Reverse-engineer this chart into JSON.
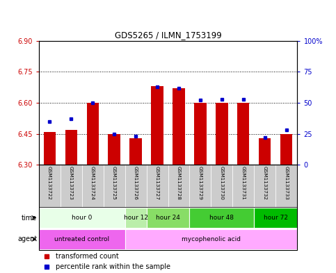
{
  "title": "GDS5265 / ILMN_1753199",
  "samples": [
    "GSM1133722",
    "GSM1133723",
    "GSM1133724",
    "GSM1133725",
    "GSM1133726",
    "GSM1133727",
    "GSM1133728",
    "GSM1133729",
    "GSM1133730",
    "GSM1133731",
    "GSM1133732",
    "GSM1133733"
  ],
  "red_values": [
    6.46,
    6.47,
    6.6,
    6.45,
    6.43,
    6.68,
    6.67,
    6.6,
    6.6,
    6.6,
    6.43,
    6.45
  ],
  "blue_values": [
    35,
    37,
    50,
    25,
    23,
    63,
    62,
    52,
    53,
    53,
    22,
    28
  ],
  "ylim_left": [
    6.3,
    6.9
  ],
  "ylim_right": [
    0,
    100
  ],
  "left_ticks": [
    6.3,
    6.45,
    6.6,
    6.75,
    6.9
  ],
  "right_ticks": [
    0,
    25,
    50,
    75,
    100
  ],
  "dotted_lines": [
    6.45,
    6.6,
    6.75
  ],
  "bar_color": "#cc0000",
  "bar_bottom": 6.3,
  "blue_color": "#0000cc",
  "time_groups": [
    {
      "label": "hour 0",
      "start": 0,
      "end": 3,
      "color": "#e8ffe8"
    },
    {
      "label": "hour 12",
      "start": 4,
      "end": 4,
      "color": "#bbeeaa"
    },
    {
      "label": "hour 24",
      "start": 5,
      "end": 6,
      "color": "#88dd66"
    },
    {
      "label": "hour 48",
      "start": 7,
      "end": 9,
      "color": "#44cc33"
    },
    {
      "label": "hour 72",
      "start": 10,
      "end": 11,
      "color": "#00bb00"
    }
  ],
  "agent_groups": [
    {
      "label": "untreated control",
      "start": 0,
      "end": 3,
      "color": "#ee66ee"
    },
    {
      "label": "mycophenolic acid",
      "start": 4,
      "end": 11,
      "color": "#ffaaff"
    }
  ],
  "legend_red": "transformed count",
  "legend_blue": "percentile rank within the sample",
  "bg_plot": "#ffffff",
  "bg_sample_row": "#cccccc",
  "left_tick_color": "#cc0000",
  "right_tick_color": "#0000cc"
}
